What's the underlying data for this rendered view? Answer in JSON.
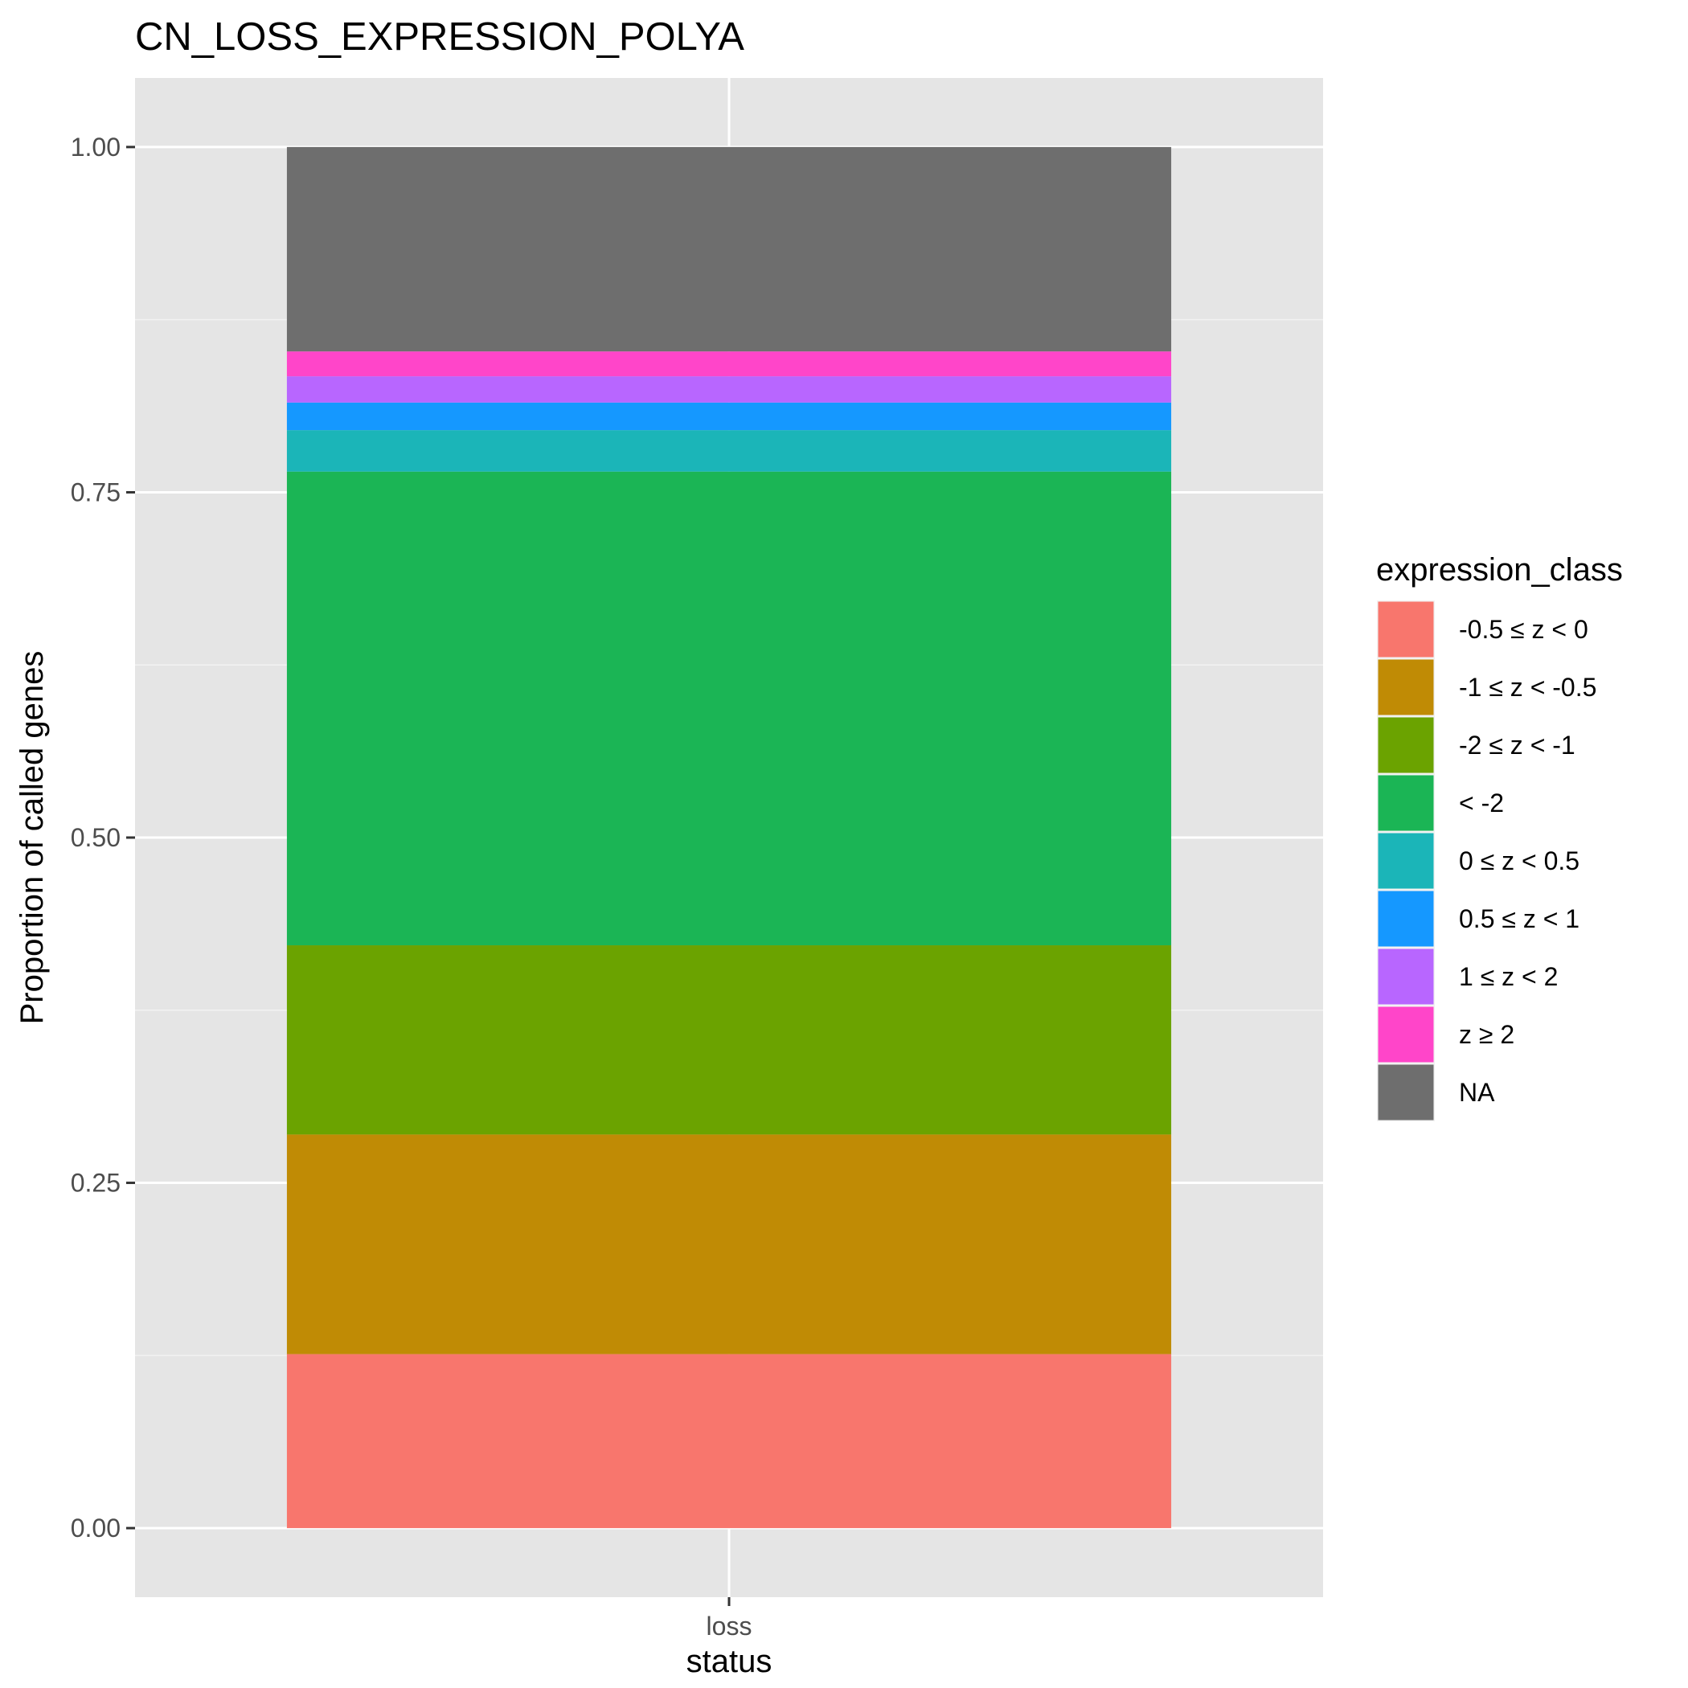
{
  "chart_data": {
    "type": "bar",
    "stacked": true,
    "title": "CN_LOSS_EXPRESSION_POLYA",
    "xlabel": "status",
    "ylabel": "Proportion of called genes",
    "categories": [
      "loss"
    ],
    "ylim": [
      -0.05,
      1.05
    ],
    "y_ticks": [
      0,
      0.25,
      0.5,
      0.75,
      1
    ],
    "y_tick_labels": [
      "0.00",
      "0.25",
      "0.50",
      "0.75",
      "1.00"
    ],
    "grid": true,
    "legend": {
      "title": "expression_class",
      "position": "right"
    },
    "series": [
      {
        "name": "-0.5 ≤ z < 0",
        "color": "#F8766D",
        "values": [
          0.126
        ]
      },
      {
        "name": "-1 ≤ z < -0.5",
        "color": "#C08B05",
        "values": [
          0.159
        ]
      },
      {
        "name": "-2 ≤ z < -1",
        "color": "#6BA300",
        "values": [
          0.137
        ]
      },
      {
        "name": "< -2",
        "color": "#1BB555",
        "values": [
          0.343
        ]
      },
      {
        "name": "0 ≤ z < 0.5",
        "color": "#1BB5B8",
        "values": [
          0.03
        ]
      },
      {
        "name": "0.5 ≤ z < 1",
        "color": "#1598FF",
        "values": [
          0.02
        ]
      },
      {
        "name": "1 ≤ z < 2",
        "color": "#B866FF",
        "values": [
          0.019
        ]
      },
      {
        "name": "z ≥ 2",
        "color": "#FF45C9",
        "values": [
          0.018
        ]
      },
      {
        "name": "NA",
        "color": "#6E6E6E",
        "values": [
          0.148
        ]
      }
    ]
  }
}
